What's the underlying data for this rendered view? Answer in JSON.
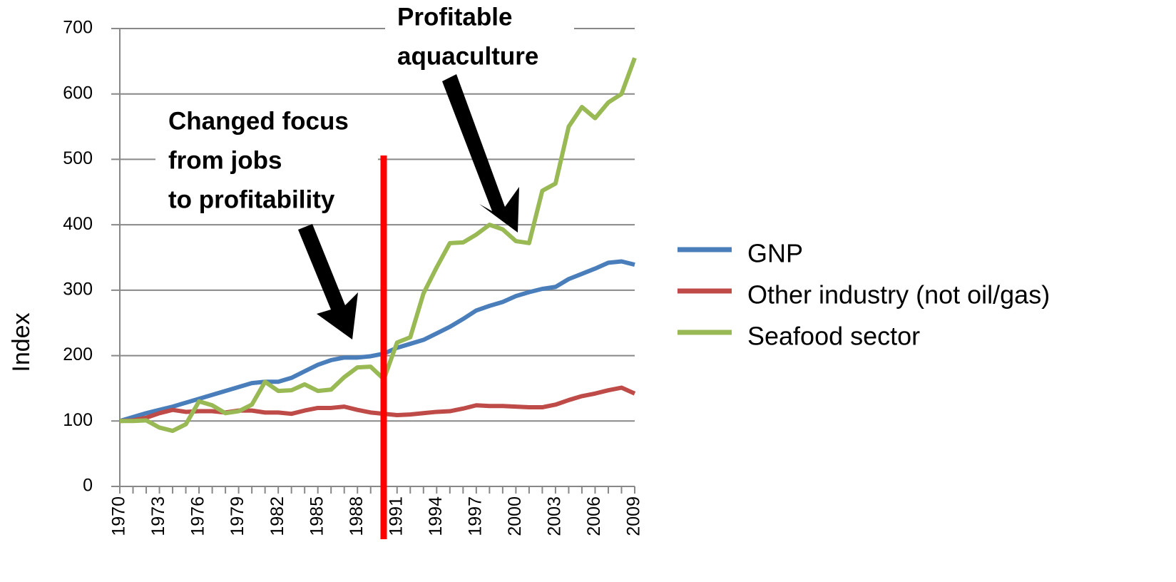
{
  "chart_data": {
    "type": "line",
    "y_label": "Index",
    "x": [
      1970,
      1971,
      1972,
      1973,
      1974,
      1975,
      1976,
      1977,
      1978,
      1979,
      1980,
      1981,
      1982,
      1983,
      1984,
      1985,
      1986,
      1987,
      1988,
      1989,
      1990,
      1991,
      1992,
      1993,
      1994,
      1995,
      1996,
      1997,
      1998,
      1999,
      2000,
      2001,
      2002,
      2003,
      2004,
      2005,
      2006,
      2007,
      2008,
      2009
    ],
    "xlim": [
      1970,
      2009
    ],
    "xticks": [
      1970,
      1973,
      1976,
      1979,
      1982,
      1985,
      1988,
      1991,
      1994,
      1997,
      2000,
      2003,
      2006,
      2009
    ],
    "ylim": [
      0,
      700
    ],
    "yticks": [
      0,
      100,
      200,
      300,
      400,
      500,
      600,
      700
    ],
    "grid": true,
    "legend": "right",
    "series": [
      {
        "name": "GNP",
        "color": "#4a7ebb",
        "values": [
          100,
          106,
          112,
          117,
          122,
          128,
          134,
          140,
          146,
          152,
          158,
          160,
          160,
          166,
          176,
          186,
          193,
          197,
          197,
          199,
          203,
          212,
          218,
          224,
          234,
          244,
          256,
          269,
          276,
          282,
          291,
          297,
          302,
          305,
          317,
          325,
          333,
          342,
          344,
          339
        ]
      },
      {
        "name": "Other industry (not oil/gas)",
        "color": "#be4b48",
        "values": [
          100,
          101,
          105,
          112,
          117,
          114,
          115,
          115,
          113,
          116,
          116,
          113,
          113,
          111,
          116,
          120,
          120,
          122,
          117,
          113,
          111,
          109,
          110,
          112,
          114,
          115,
          119,
          124,
          123,
          123,
          122,
          121,
          121,
          125,
          132,
          138,
          142,
          147,
          151,
          142
        ]
      },
      {
        "name": "Seafood sector",
        "color": "#98b954",
        "values": [
          100,
          100,
          101,
          90,
          85,
          95,
          130,
          124,
          112,
          115,
          125,
          160,
          146,
          147,
          156,
          146,
          148,
          167,
          182,
          183,
          164,
          220,
          228,
          295,
          335,
          372,
          373,
          385,
          400,
          393,
          375,
          372,
          452,
          463,
          550,
          580,
          563,
          587,
          600,
          655
        ]
      }
    ],
    "annotations": [
      {
        "lines": [
          "Changed focus",
          "from jobs",
          "to profitability"
        ]
      },
      {
        "lines": [
          "Profitable",
          "aquaculture"
        ]
      }
    ]
  }
}
